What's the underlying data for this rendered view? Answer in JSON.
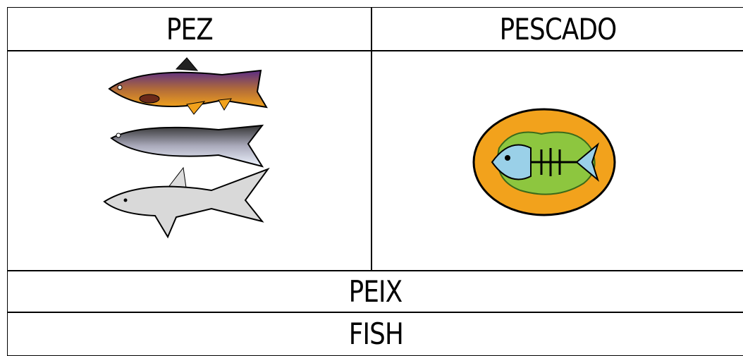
{
  "table": {
    "rows": [
      [
        "PEZ",
        "PESCADO"
      ],
      [
        "PEIX"
      ],
      [
        "FISH"
      ]
    ]
  }
}
